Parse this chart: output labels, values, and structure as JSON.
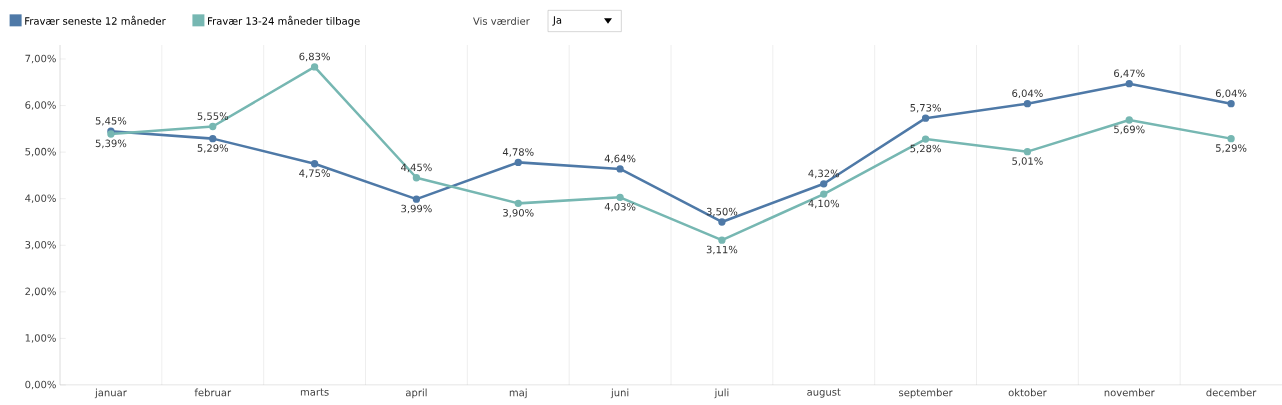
{
  "chart_data": {
    "type": "line",
    "categories": [
      "januar",
      "februar",
      "marts",
      "april",
      "maj",
      "juni",
      "juli",
      "august",
      "september",
      "oktober",
      "november",
      "december"
    ],
    "series": [
      {
        "name": "Fravær seneste 12 måneder",
        "color": "#4e79a7",
        "values": [
          5.45,
          5.29,
          4.75,
          3.99,
          4.78,
          4.64,
          3.5,
          4.32,
          5.73,
          6.04,
          6.47,
          6.04
        ],
        "value_labels": [
          "5,45%",
          "5,29%",
          "4,75%",
          "3,99%",
          "4,78%",
          "4,64%",
          "3,50%",
          "4,32%",
          "5,73%",
          "6,04%",
          "6,47%",
          "6,04%"
        ]
      },
      {
        "name": "Fravær 13-24 måneder tilbage",
        "color": "#76b7b2",
        "values": [
          5.39,
          5.55,
          6.83,
          4.45,
          3.9,
          4.03,
          3.11,
          4.1,
          5.28,
          5.01,
          5.69,
          5.29
        ],
        "value_labels": [
          "5,39%",
          "5,55%",
          "6,83%",
          "4,45%",
          "3,90%",
          "4,03%",
          "3,11%",
          "4,10%",
          "5,28%",
          "5,01%",
          "5,69%",
          "5,29%"
        ]
      }
    ],
    "ylim": [
      0,
      7.3
    ],
    "yticks": [
      {
        "value": 0,
        "label": "0,00%"
      },
      {
        "value": 1,
        "label": "1,00%"
      },
      {
        "value": 2,
        "label": "2,00%"
      },
      {
        "value": 3,
        "label": "3,00%"
      },
      {
        "value": 4,
        "label": "4,00%"
      },
      {
        "value": 5,
        "label": "5,00%"
      },
      {
        "value": 6,
        "label": "6,00%"
      },
      {
        "value": 7,
        "label": "7,00%"
      }
    ],
    "grid": "x",
    "legend": "top left",
    "marker": "circle",
    "line_style": "solid",
    "annotations": [
      "Vis værdier",
      "Ja"
    ]
  }
}
